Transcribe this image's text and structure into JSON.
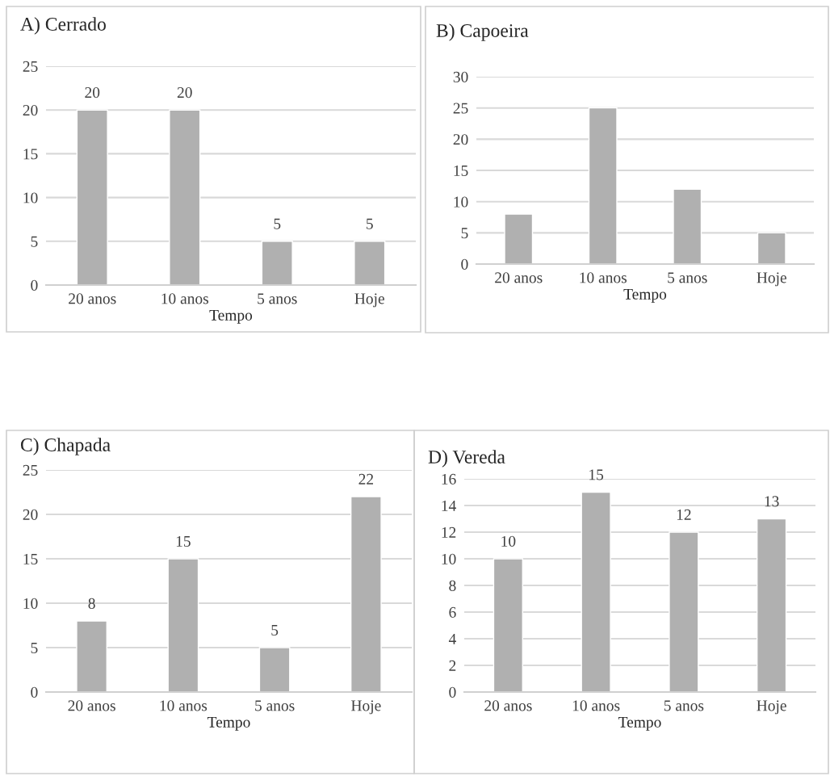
{
  "chart_data": [
    {
      "type": "bar",
      "title": "A) Cerrado",
      "xlabel": "Tempo",
      "categories": [
        "20 anos",
        "10 anos",
        "5 anos",
        "Hoje"
      ],
      "values": [
        20,
        20,
        5,
        5
      ],
      "color": "#b0b0b0",
      "ylim": [
        0,
        25
      ],
      "yticks": [
        0,
        5,
        10,
        15,
        20,
        25
      ],
      "grid": "y",
      "data_labels": true
    },
    {
      "type": "bar",
      "title": "B) Capoeira",
      "xlabel": "Tempo",
      "categories": [
        "20 anos",
        "10 anos",
        "5 anos",
        "Hoje"
      ],
      "values": [
        8,
        25,
        12,
        5
      ],
      "color": "#b0b0b0",
      "ylim": [
        0,
        30
      ],
      "yticks": [
        0,
        5,
        10,
        15,
        20,
        25,
        30
      ],
      "grid": "y"
    },
    {
      "type": "bar",
      "title": "C) Chapada",
      "xlabel": "Tempo",
      "categories": [
        "20 anos",
        "10 anos",
        "5 anos",
        "Hoje"
      ],
      "values": [
        8,
        15,
        5,
        22
      ],
      "color": "#b0b0b0",
      "ylim": [
        0,
        25
      ],
      "yticks": [
        0,
        5,
        10,
        15,
        20,
        25
      ],
      "grid": "y",
      "data_labels": true
    },
    {
      "type": "bar",
      "title": "D) Vereda",
      "xlabel": "Tempo",
      "categories": [
        "20 anos",
        "10 anos",
        "5 anos",
        "Hoje"
      ],
      "values": [
        10,
        15,
        12,
        13
      ],
      "color": "#b0b0b0",
      "ylim": [
        0,
        16
      ],
      "yticks": [
        0,
        2,
        4,
        6,
        8,
        10,
        12,
        14,
        16
      ],
      "grid": "y",
      "data_labels": true
    }
  ]
}
